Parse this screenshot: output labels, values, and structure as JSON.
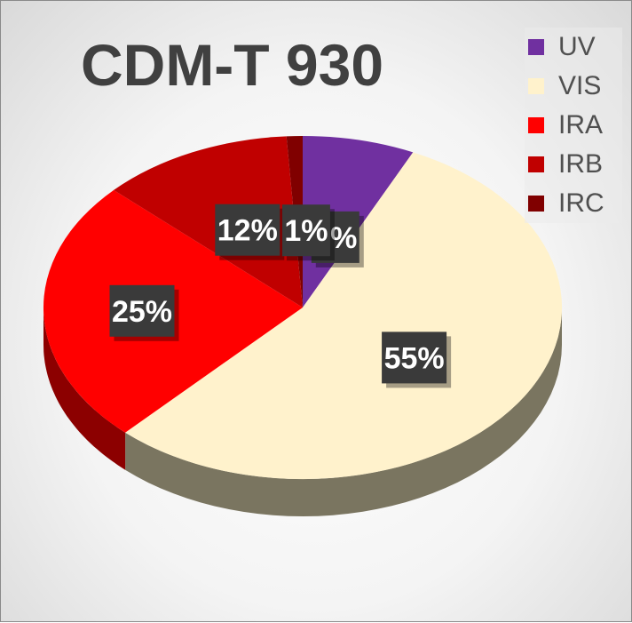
{
  "chart_data": {
    "type": "pie",
    "title": "CDM-T 930",
    "legend_position": "top-right",
    "slices": [
      {
        "label": "UV",
        "value": 7,
        "data_label": "7%",
        "color": "#7030A0"
      },
      {
        "label": "VIS",
        "value": 55,
        "data_label": "55%",
        "color": "#FFF2CC"
      },
      {
        "label": "IRA",
        "value": 25,
        "data_label": "25%",
        "color": "#FF0000"
      },
      {
        "label": "IRB",
        "value": 12,
        "data_label": "12%",
        "color": "#C00000"
      },
      {
        "label": "IRC",
        "value": 1,
        "data_label": "1%",
        "color": "#800000"
      }
    ]
  }
}
